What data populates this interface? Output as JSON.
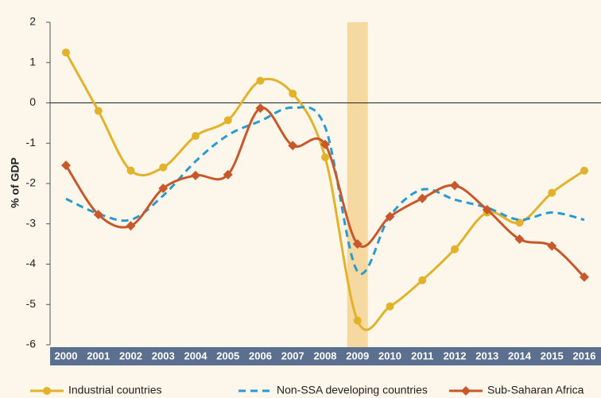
{
  "chart_data": {
    "type": "line",
    "y_label": "% of GDP",
    "categories": [
      "2000",
      "2001",
      "2002",
      "2003",
      "2004",
      "2005",
      "2006",
      "2007",
      "2008",
      "2009",
      "2010",
      "2011",
      "2012",
      "2013",
      "2014",
      "2015",
      "2016"
    ],
    "highlight": "2009",
    "ylim": [
      -6,
      2
    ],
    "yticks": [
      -6,
      -5,
      -4,
      -3,
      -2,
      -1,
      0,
      1,
      2
    ],
    "series": [
      {
        "name": "Industrial countries",
        "color": "#e3b22b",
        "marker": "circle",
        "dash": false,
        "values": [
          1.25,
          -0.2,
          -1.68,
          -1.6,
          -0.82,
          -0.43,
          0.55,
          0.23,
          -1.35,
          -5.4,
          -5.05,
          -4.4,
          -3.63,
          -2.72,
          -2.97,
          -2.23,
          -1.68
        ]
      },
      {
        "name": "Non-SSA developing countries",
        "color": "#2a9ad1",
        "marker": "none",
        "dash": true,
        "values": [
          -2.38,
          -2.75,
          -2.9,
          -2.3,
          -1.45,
          -0.8,
          -0.45,
          -0.12,
          -0.6,
          -4.18,
          -2.8,
          -2.15,
          -2.4,
          -2.6,
          -2.9,
          -2.72,
          -2.9
        ]
      },
      {
        "name": "Sub-Saharan Africa",
        "color": "#c8582a",
        "marker": "diamond",
        "dash": false,
        "values": [
          -1.55,
          -2.77,
          -3.05,
          -2.12,
          -1.8,
          -1.78,
          -0.13,
          -1.06,
          -1.03,
          -3.5,
          -2.82,
          -2.37,
          -2.05,
          -2.65,
          -3.38,
          -3.55,
          -4.32
        ]
      }
    ]
  }
}
